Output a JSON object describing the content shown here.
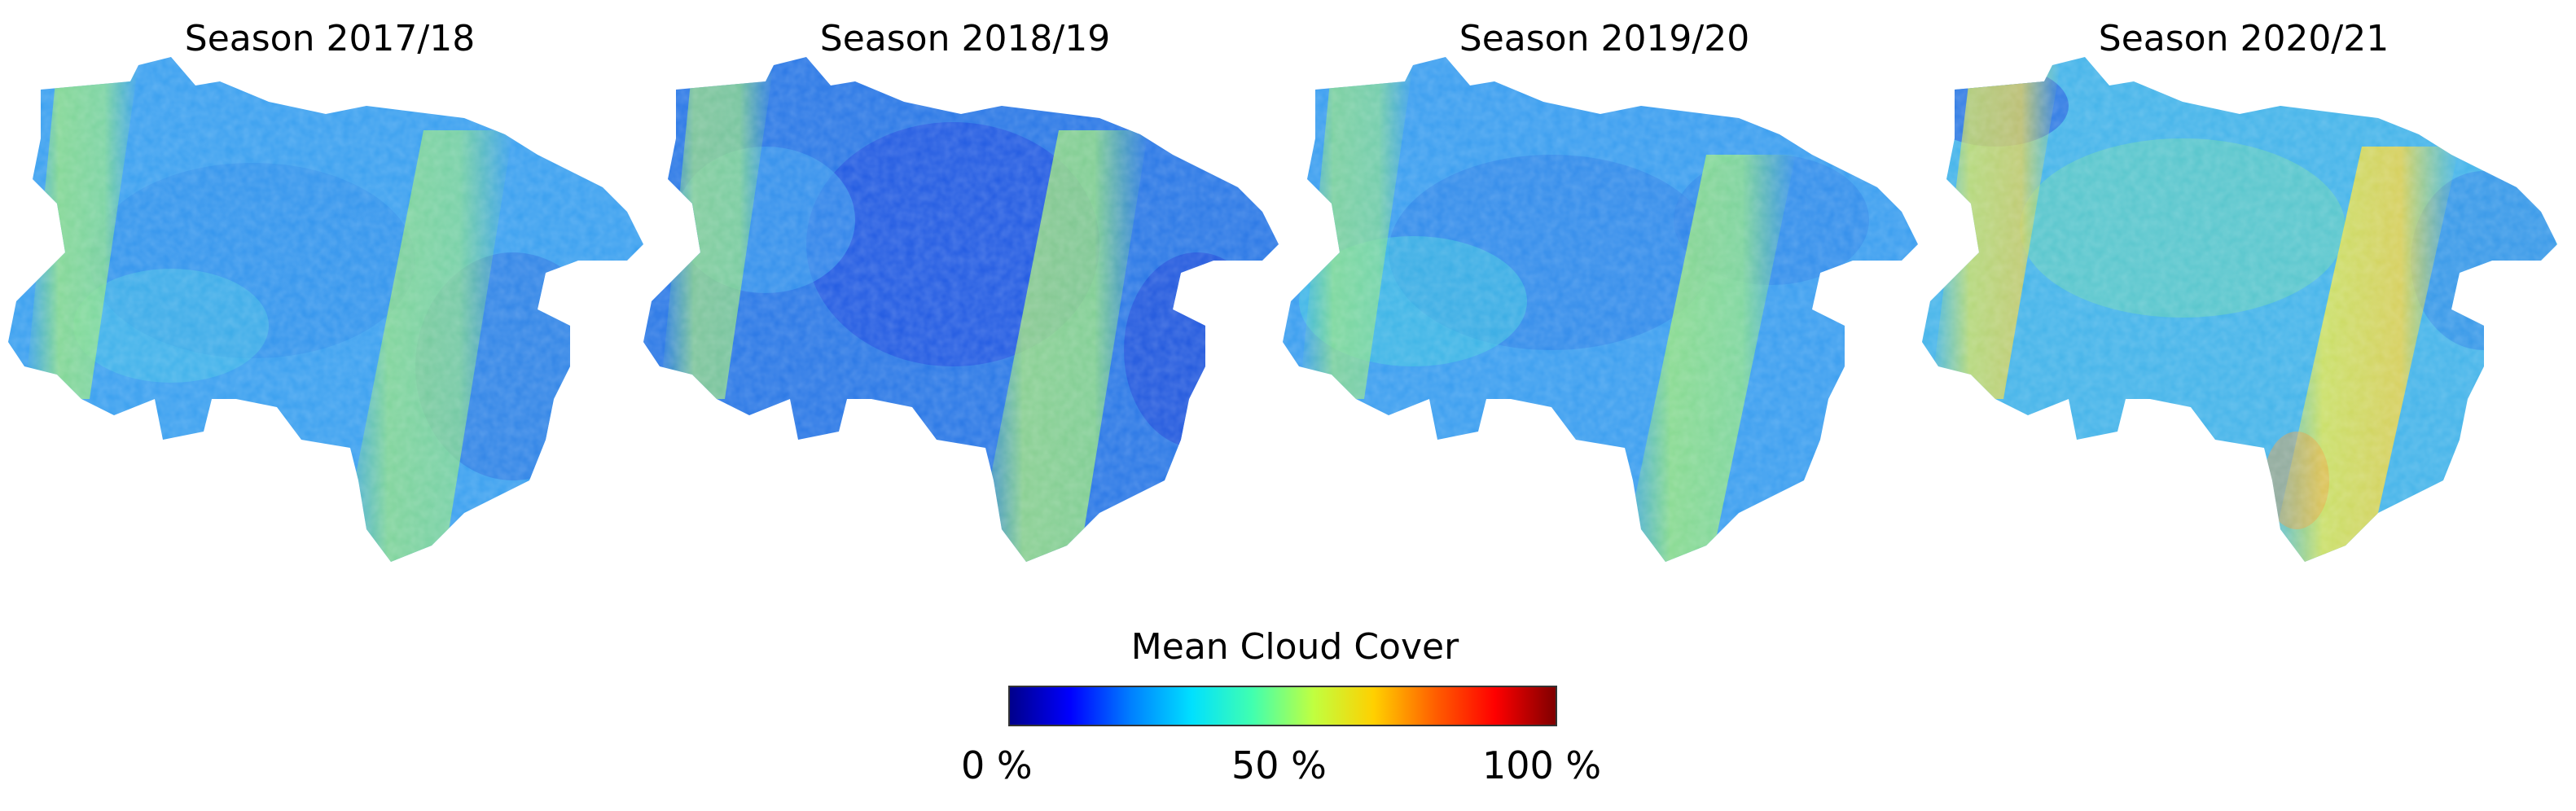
{
  "panels": [
    {
      "title": "Season 2017/18"
    },
    {
      "title": "Season 2018/19"
    },
    {
      "title": "Season 2019/20"
    },
    {
      "title": "Season 2020/21"
    }
  ],
  "legend": {
    "title": "Mean Cloud Cover",
    "ticks": [
      "0 %",
      "50 %",
      "100 %"
    ],
    "colormap": [
      "#00008b",
      "#0000ff",
      "#0080ff",
      "#00e0ff",
      "#40ffb0",
      "#c0ff40",
      "#ffd000",
      "#ff6000",
      "#ff0000",
      "#800000"
    ]
  },
  "map_colors": {
    "low": "#2050e0",
    "base": "#3a9ef0",
    "mid": "#33ccdd",
    "high": "#8ee88a",
    "very_high": "#e0d040"
  }
}
